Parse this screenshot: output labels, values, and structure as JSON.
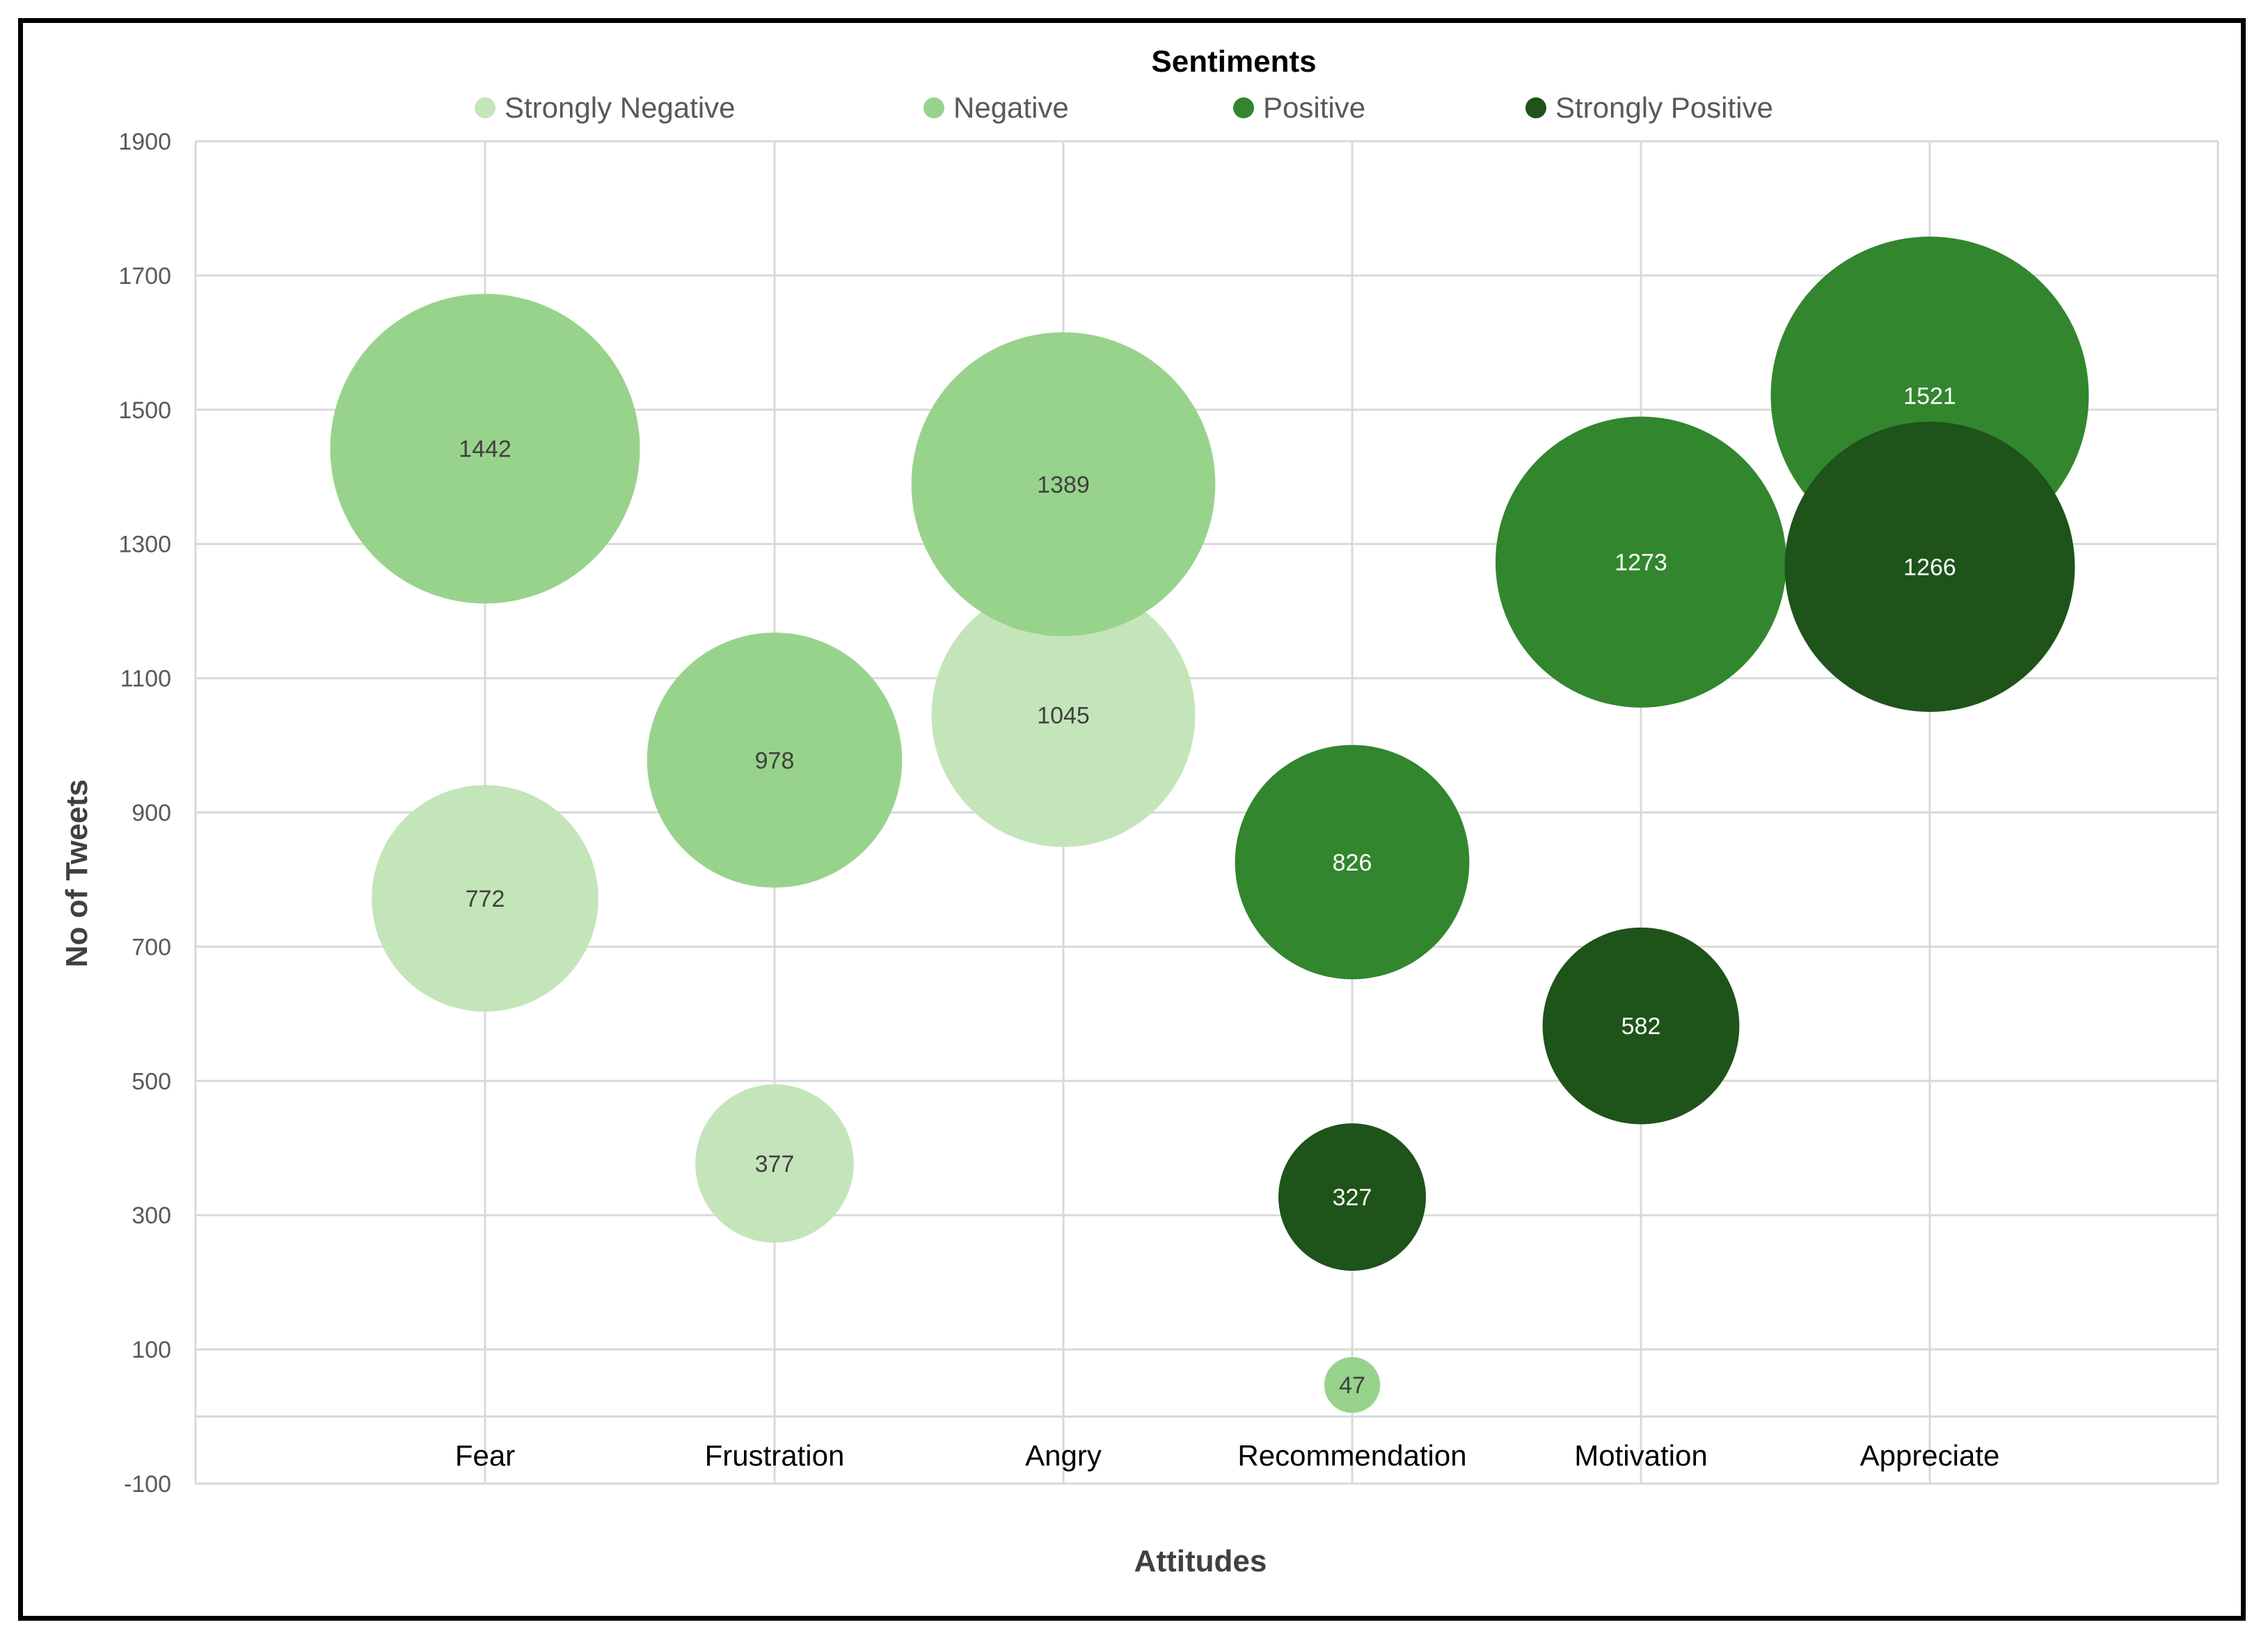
{
  "chart_data": {
    "type": "bubble",
    "title": "",
    "legend_title": "Sentiments",
    "legend_position": "top",
    "xlabel": "Attitudes",
    "ylabel": "No of Tweets",
    "ylim": [
      -100,
      1900
    ],
    "yticks": [
      -100,
      100,
      300,
      500,
      700,
      900,
      1100,
      1300,
      1500,
      1700,
      1900
    ],
    "grid": true,
    "categories": [
      "Fear",
      "Frustration",
      "Angry",
      "Recommendation",
      "Motivation",
      "Appreciate"
    ],
    "series": [
      {
        "name": "Strongly Negative",
        "color": "#c4e5b9",
        "text_color": "#404040",
        "points": [
          {
            "category": "Fear",
            "value": 772
          },
          {
            "category": "Frustration",
            "value": 377
          },
          {
            "category": "Angry",
            "value": 1045
          }
        ]
      },
      {
        "name": "Negative",
        "color": "#98d38c",
        "text_color": "#404040",
        "points": [
          {
            "category": "Fear",
            "value": 1442
          },
          {
            "category": "Frustration",
            "value": 978
          },
          {
            "category": "Angry",
            "value": 1389
          },
          {
            "category": "Recommendation",
            "value": 47
          }
        ]
      },
      {
        "name": "Positive",
        "color": "#32862e",
        "text_color": "#ffffff",
        "points": [
          {
            "category": "Recommendation",
            "value": 826
          },
          {
            "category": "Motivation",
            "value": 1273
          },
          {
            "category": "Appreciate",
            "value": 1521
          }
        ]
      },
      {
        "name": "Strongly Positive",
        "color": "#1e5319",
        "text_color": "#ffffff",
        "points": [
          {
            "category": "Recommendation",
            "value": 327
          },
          {
            "category": "Motivation",
            "value": 582
          },
          {
            "category": "Appreciate",
            "value": 1266
          }
        ]
      }
    ]
  }
}
